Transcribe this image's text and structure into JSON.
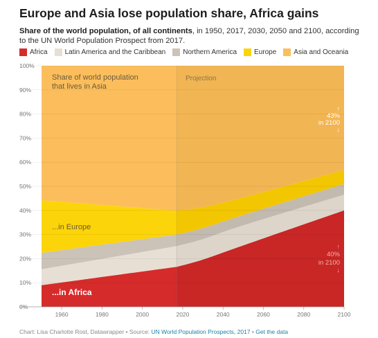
{
  "header": {
    "title": "Europe and Asia lose population share, Africa gains",
    "subtitle_bold": "Share of the world population, of all continents",
    "subtitle_rest": ", in 1950, 2017, 2030, 2050 and 2100, according to the UN World Population Prospect from 2017."
  },
  "footer": {
    "credit": "Chart: Lisa Charlotte Rost, Datawrapper • Source: ",
    "source_link": "UN World Population Prospects, 2017",
    "separator": " • ",
    "data_link": "Get the data"
  },
  "chart_data": {
    "type": "area",
    "stacked": true,
    "x": [
      1950,
      2017,
      2030,
      2050,
      2100
    ],
    "ylim": [
      0,
      100
    ],
    "xlim": [
      1950,
      2100
    ],
    "y_ticks": [
      0,
      10,
      20,
      30,
      40,
      50,
      60,
      70,
      80,
      90,
      100
    ],
    "y_tick_labels": [
      "0%",
      "10%",
      "20%",
      "30%",
      "40%",
      "50%",
      "60%",
      "70%",
      "80%",
      "90%",
      "100%"
    ],
    "x_ticks": [
      1960,
      1980,
      2000,
      2020,
      2040,
      2060,
      2080,
      2100
    ],
    "x_tick_labels": [
      "1960",
      "1980",
      "2000",
      "2020",
      "2040",
      "2060",
      "2080",
      "2100"
    ],
    "grid": true,
    "legend_position": "top",
    "projection_start": 2017,
    "series": [
      {
        "name": "Africa",
        "color": "#d62b2b",
        "projection_color": "#c92626",
        "values": [
          9,
          16.6,
          19.6,
          25.5,
          40
        ]
      },
      {
        "name": "Latin America and the Caribbean",
        "color": "#e7dfd4",
        "projection_color": "#ddd5ca",
        "values": [
          6.6,
          8.6,
          8.5,
          8.3,
          6.5
        ]
      },
      {
        "name": "Northern America",
        "color": "#cbc3b8",
        "projection_color": "#c2baaf",
        "values": [
          6.8,
          4.8,
          4.6,
          4.3,
          4.5
        ]
      },
      {
        "name": "Europe",
        "color": "#fcd40a",
        "projection_color": "#f2c600",
        "values": [
          21.8,
          9.9,
          8.7,
          7.3,
          5.8
        ]
      },
      {
        "name": "Asia and Oceania",
        "color": "#fcbe5c",
        "projection_color": "#f2b553",
        "values": [
          55.8,
          60.1,
          58.6,
          54.6,
          43.2
        ]
      }
    ],
    "annotations": {
      "asia_label": [
        "Share of world population",
        "that lives in Asia"
      ],
      "europe_label": "...in Europe",
      "africa_label": "...in Africa",
      "projection_label": "Projection",
      "asia_2100": [
        "↑",
        "43%",
        "in 2100",
        "↓"
      ],
      "africa_2100": [
        "↑",
        "40%",
        "in 2100",
        "↓"
      ]
    }
  }
}
